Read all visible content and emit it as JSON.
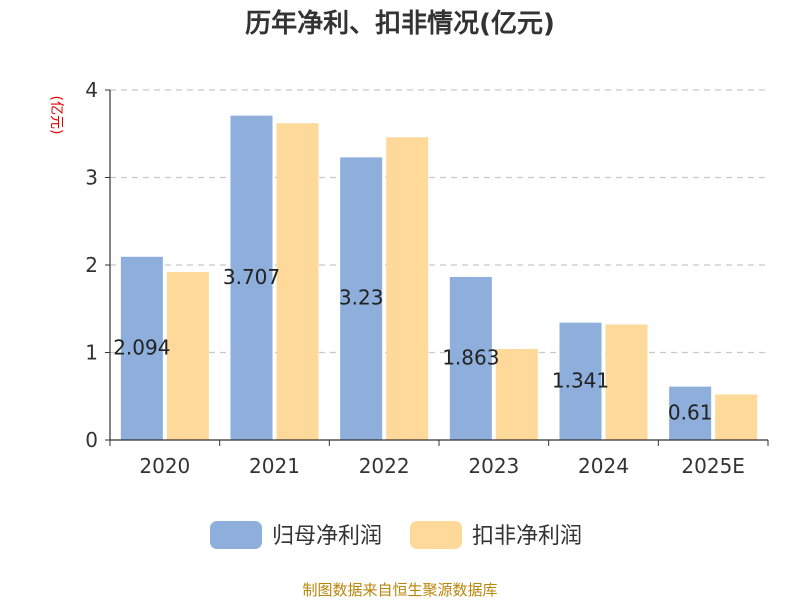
{
  "chart_data": {
    "type": "bar",
    "title": "历年净利、扣非情况(亿元)",
    "ylabel": "(亿元)",
    "xlabel": "",
    "categories": [
      "2020",
      "2021",
      "2022",
      "2023",
      "2024",
      "2025E"
    ],
    "yticks": [
      "0",
      "1",
      "2",
      "3",
      "4"
    ],
    "ylim": [
      0,
      4
    ],
    "grid": true,
    "legend_position": "bottom",
    "series": [
      {
        "name": "归母净利润",
        "color": "#8eaedb",
        "values": [
          2.094,
          3.707,
          3.23,
          1.863,
          1.341,
          0.61
        ],
        "labels": [
          "2.094",
          "3.707",
          "3.23",
          "1.863",
          "1.341",
          "0.61"
        ]
      },
      {
        "name": "扣非净利润",
        "color": "#ffd999",
        "values": [
          1.92,
          3.62,
          3.46,
          1.04,
          1.32,
          0.52
        ]
      }
    ]
  },
  "footer": {
    "source": "制图数据来自恒生聚源数据库"
  }
}
